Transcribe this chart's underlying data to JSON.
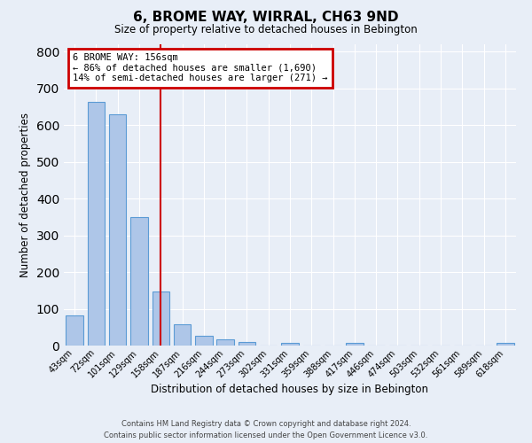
{
  "title": "6, BROME WAY, WIRRAL, CH63 9ND",
  "subtitle": "Size of property relative to detached houses in Bebington",
  "xlabel": "Distribution of detached houses by size in Bebington",
  "ylabel": "Number of detached properties",
  "bar_color": "#aec6e8",
  "bar_edge_color": "#5b9bd5",
  "background_color": "#e8eef7",
  "grid_color": "#ffffff",
  "categories": [
    "43sqm",
    "72sqm",
    "101sqm",
    "129sqm",
    "158sqm",
    "187sqm",
    "216sqm",
    "244sqm",
    "273sqm",
    "302sqm",
    "331sqm",
    "359sqm",
    "388sqm",
    "417sqm",
    "446sqm",
    "474sqm",
    "503sqm",
    "532sqm",
    "561sqm",
    "589sqm",
    "618sqm"
  ],
  "values": [
    82,
    663,
    630,
    350,
    148,
    57,
    27,
    18,
    10,
    0,
    7,
    0,
    0,
    7,
    0,
    0,
    0,
    0,
    0,
    0,
    7
  ],
  "property_line_idx": 4,
  "property_line_color": "#cc0000",
  "annotation_title": "6 BROME WAY: 156sqm",
  "annotation_line1": "← 86% of detached houses are smaller (1,690)",
  "annotation_line2": "14% of semi-detached houses are larger (271) →",
  "annotation_box_color": "#cc0000",
  "ylim": [
    0,
    820
  ],
  "yticks": [
    0,
    100,
    200,
    300,
    400,
    500,
    600,
    700,
    800
  ],
  "footnote1": "Contains HM Land Registry data © Crown copyright and database right 2024.",
  "footnote2": "Contains public sector information licensed under the Open Government Licence v3.0."
}
